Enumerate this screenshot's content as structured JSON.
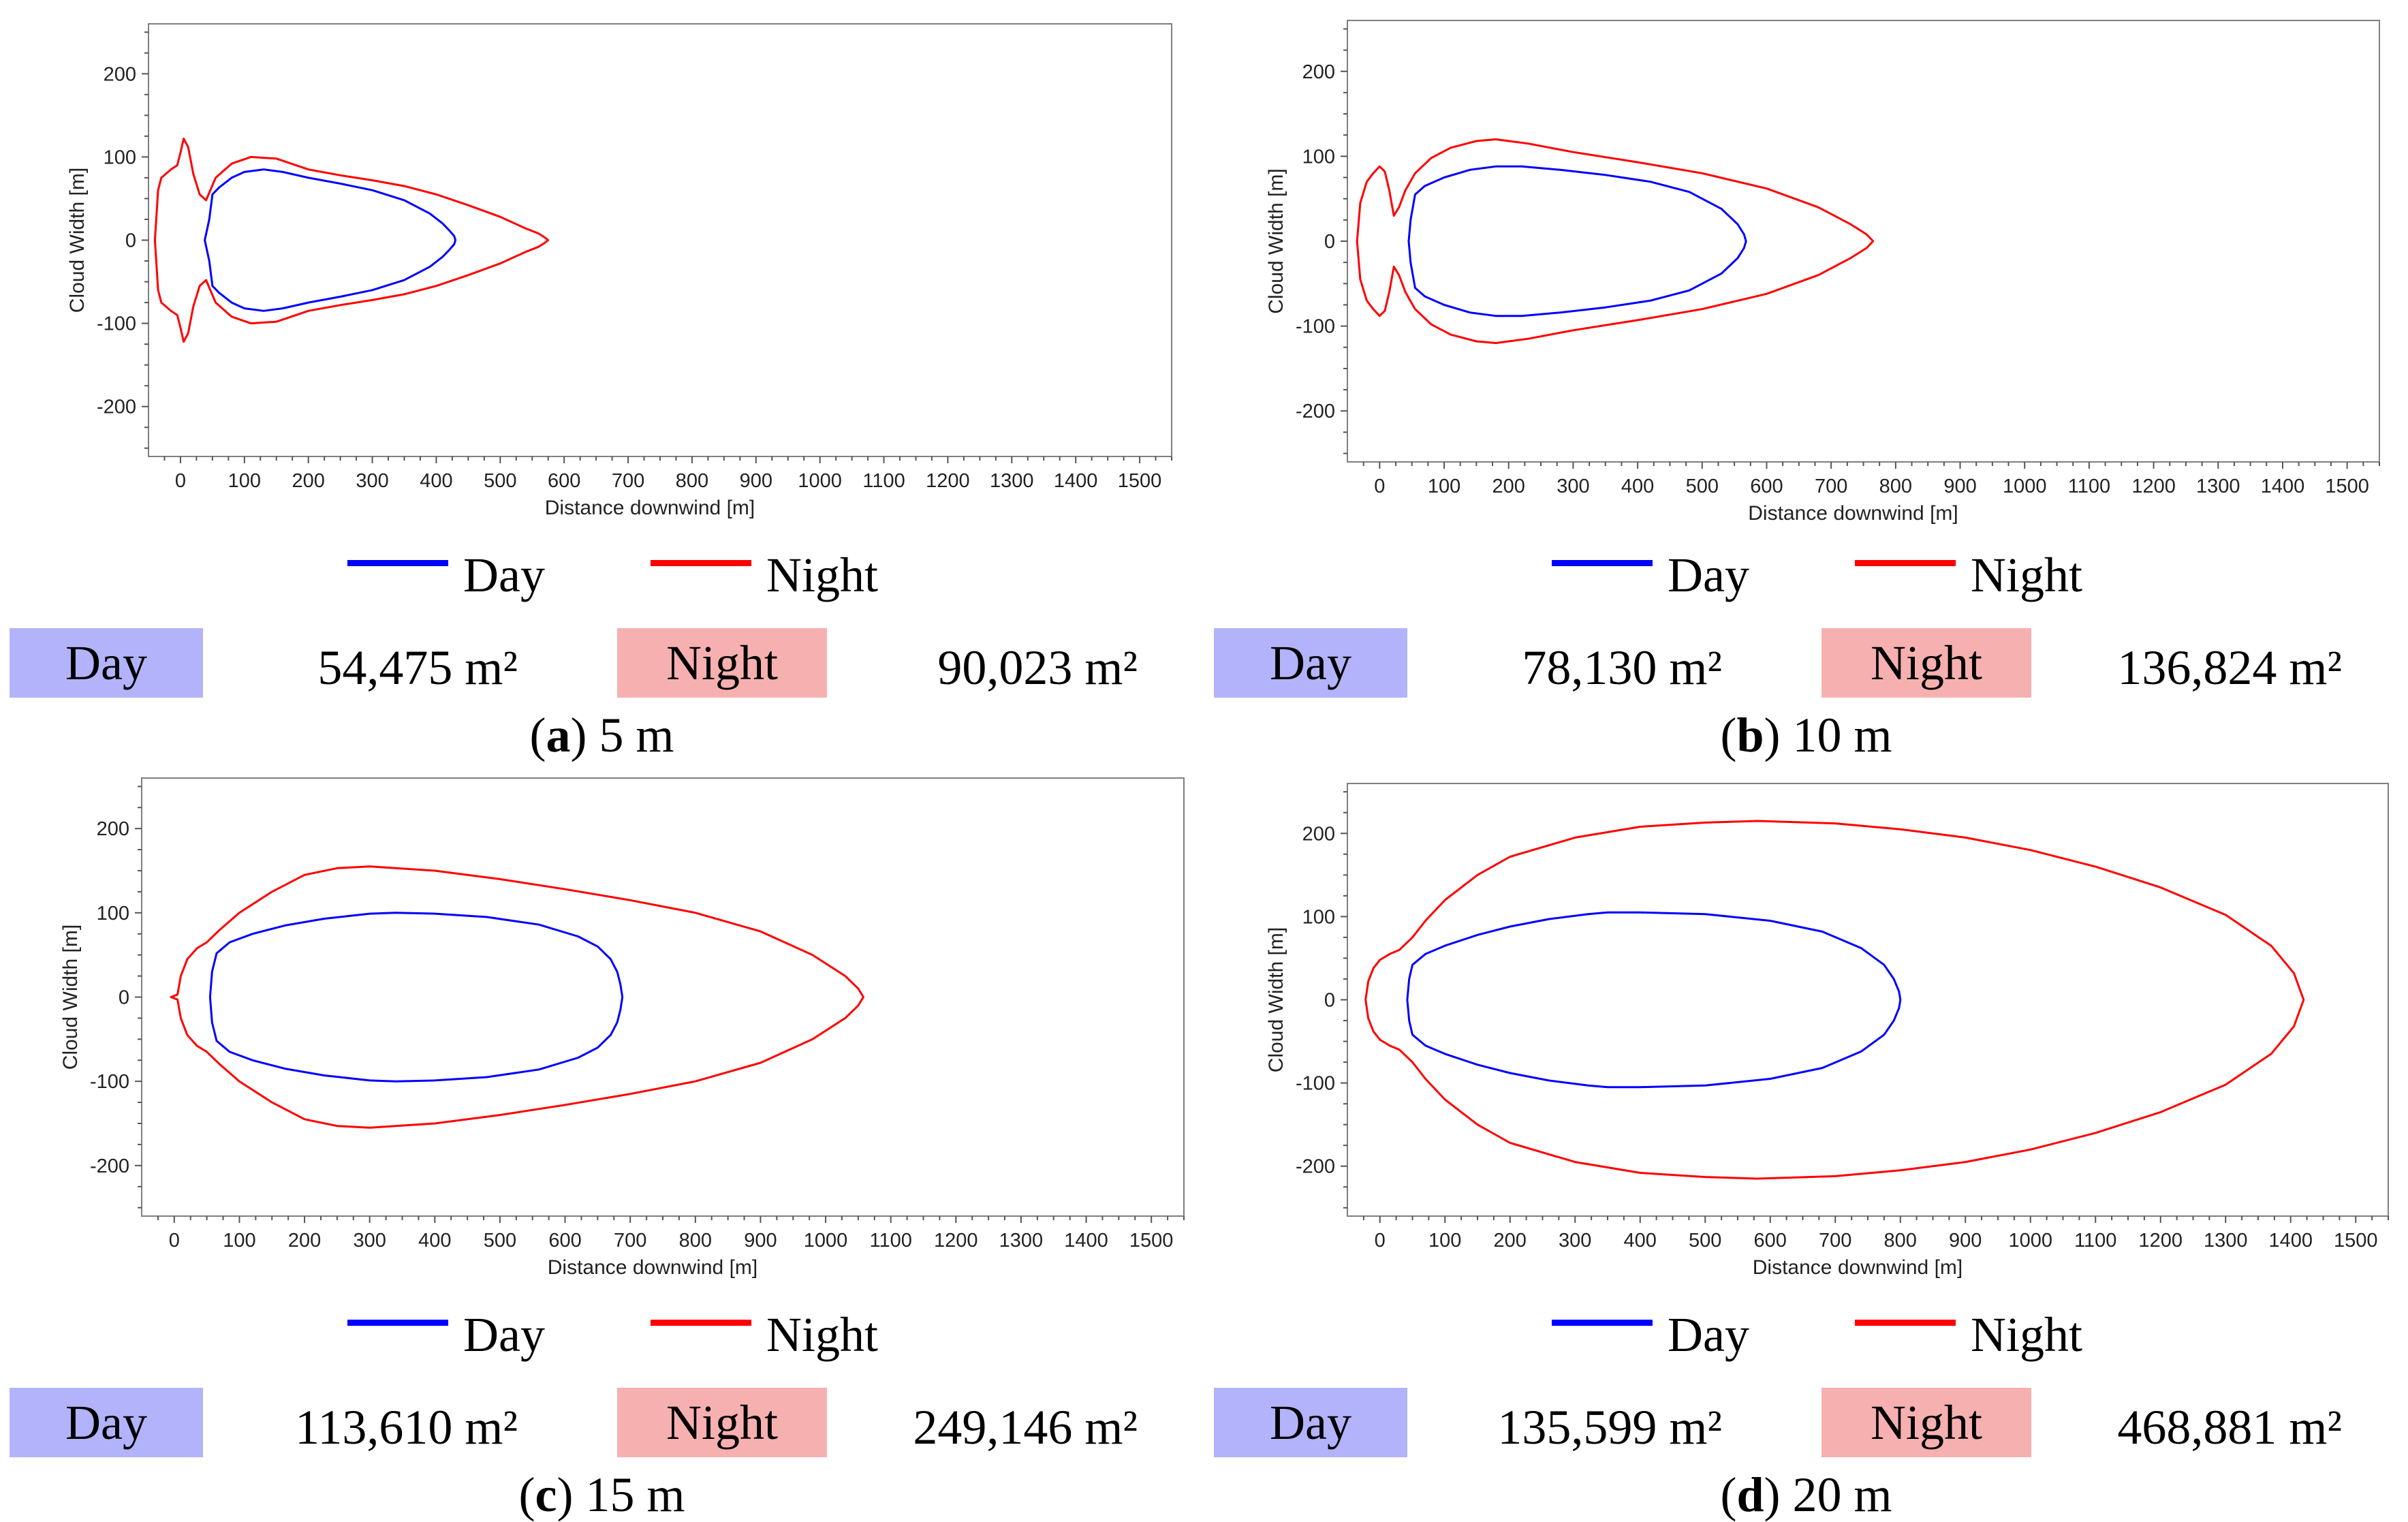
{
  "colors": {
    "day": "#0000ff",
    "night": "#ff0000",
    "day_box": "#b3b3fb",
    "night_box": "#f7b0b0",
    "frame": "#7f7f7f"
  },
  "labels": {
    "day": "Day",
    "night": "Night"
  },
  "chart_data": [
    {
      "type": "line",
      "caption": {
        "letter": "a",
        "text": "5 m"
      },
      "xlabel": "Distance downwind [m]",
      "ylabel": "Cloud Width [m]",
      "xlim": [
        -50,
        1550
      ],
      "ylim": [
        -260,
        260
      ],
      "xticks": [
        "0",
        "100",
        "200",
        "300",
        "400",
        "500",
        "600",
        "700",
        "800",
        "900",
        "1000",
        "1100",
        "1200",
        "1300",
        "1400",
        "1500"
      ],
      "yticks": [
        "200",
        "100",
        "0",
        "-100",
        "-200"
      ],
      "legend": [
        "Day",
        "Night"
      ],
      "areas": {
        "day": "54,475 m²",
        "night": "90,023 m²"
      },
      "series": [
        {
          "name": "Day",
          "x": [
            38,
            45,
            50,
            60,
            80,
            100,
            130,
            160,
            200,
            250,
            300,
            350,
            390,
            410,
            420,
            428,
            430
          ],
          "y": [
            0,
            25,
            55,
            63,
            75,
            82,
            85,
            82,
            75,
            68,
            60,
            48,
            32,
            20,
            12,
            5,
            0
          ]
        },
        {
          "name": "Night",
          "x": [
            -40,
            -35,
            -30,
            -15,
            -5,
            0,
            5,
            12,
            20,
            30,
            40,
            55,
            80,
            110,
            150,
            200,
            250,
            300,
            350,
            400,
            450,
            500,
            540,
            560,
            570,
            575
          ],
          "y": [
            0,
            60,
            75,
            85,
            90,
            105,
            122,
            112,
            80,
            55,
            48,
            75,
            92,
            100,
            98,
            85,
            78,
            72,
            65,
            55,
            42,
            28,
            14,
            8,
            3,
            0
          ]
        }
      ]
    },
    {
      "type": "line",
      "caption": {
        "letter": "b",
        "text": "10 m"
      },
      "xlabel": "Distance downwind [m]",
      "ylabel": "Cloud Width [m]",
      "xlim": [
        -50,
        1550
      ],
      "ylim": [
        -260,
        260
      ],
      "xticks": [
        "0",
        "100",
        "200",
        "300",
        "400",
        "500",
        "600",
        "700",
        "800",
        "900",
        "1000",
        "1100",
        "1200",
        "1300",
        "1400",
        "1500"
      ],
      "yticks": [
        "200",
        "100",
        "0",
        "-100",
        "-200"
      ],
      "legend": [
        "Day",
        "Night"
      ],
      "areas": {
        "day": "78,130 m²",
        "night": "136,824 m²"
      },
      "series": [
        {
          "name": "Day",
          "x": [
            45,
            48,
            55,
            70,
            100,
            140,
            180,
            220,
            280,
            350,
            420,
            480,
            530,
            555,
            565,
            568
          ],
          "y": [
            0,
            25,
            55,
            65,
            75,
            84,
            88,
            88,
            84,
            78,
            70,
            58,
            38,
            20,
            8,
            0
          ]
        },
        {
          "name": "Night",
          "x": [
            -35,
            -30,
            -20,
            -10,
            0,
            8,
            15,
            22,
            30,
            40,
            55,
            80,
            110,
            150,
            180,
            230,
            300,
            400,
            500,
            600,
            680,
            730,
            755,
            765
          ],
          "y": [
            0,
            45,
            70,
            80,
            88,
            82,
            60,
            30,
            40,
            60,
            80,
            98,
            110,
            118,
            120,
            115,
            105,
            93,
            80,
            62,
            40,
            20,
            8,
            0
          ]
        }
      ]
    },
    {
      "type": "line",
      "caption": {
        "letter": "c",
        "text": "15 m"
      },
      "xlabel": "Distance downwind [m]",
      "ylabel": "Cloud Width [m]",
      "xlim": [
        -50,
        1550
      ],
      "ylim": [
        -260,
        260
      ],
      "xticks": [
        "0",
        "100",
        "200",
        "300",
        "400",
        "500",
        "600",
        "700",
        "800",
        "900",
        "1000",
        "1100",
        "1200",
        "1300",
        "1400",
        "1500"
      ],
      "yticks": [
        "200",
        "100",
        "0",
        "-100",
        "-200"
      ],
      "legend": [
        "Day",
        "Night"
      ],
      "areas": {
        "day": "113,610 m²",
        "night": "249,146 m²"
      },
      "series": [
        {
          "name": "Day",
          "x": [
            55,
            58,
            65,
            85,
            120,
            170,
            230,
            300,
            340,
            400,
            480,
            560,
            620,
            650,
            670,
            680,
            685,
            688
          ],
          "y": [
            0,
            30,
            52,
            65,
            75,
            85,
            93,
            99,
            100,
            99,
            95,
            86,
            72,
            60,
            45,
            30,
            15,
            0
          ]
        },
        {
          "name": "Night",
          "x": [
            -5,
            5,
            10,
            20,
            35,
            50,
            70,
            100,
            150,
            200,
            250,
            300,
            400,
            500,
            600,
            700,
            800,
            900,
            980,
            1030,
            1050,
            1058
          ],
          "y": [
            0,
            3,
            25,
            45,
            58,
            65,
            80,
            100,
            125,
            145,
            153,
            155,
            150,
            140,
            128,
            115,
            100,
            78,
            50,
            25,
            10,
            0
          ]
        }
      ]
    },
    {
      "type": "line",
      "caption": {
        "letter": "d",
        "text": "20 m"
      },
      "xlabel": "Distance downwind [m]",
      "ylabel": "Cloud Width [m]",
      "xlim": [
        -50,
        1550
      ],
      "ylim": [
        -260,
        260
      ],
      "xticks": [
        "0",
        "100",
        "200",
        "300",
        "400",
        "500",
        "600",
        "700",
        "800",
        "900",
        "1000",
        "1100",
        "1200",
        "1300",
        "1400",
        "1500"
      ],
      "yticks": [
        "200",
        "100",
        "0",
        "-100",
        "-200"
      ],
      "legend": [
        "Day",
        "Night"
      ],
      "areas": {
        "day": "135,599 m²",
        "night": "468,881 m²"
      },
      "series": [
        {
          "name": "Day",
          "x": [
            42,
            45,
            50,
            70,
            100,
            150,
            200,
            260,
            320,
            350,
            400,
            500,
            600,
            680,
            740,
            775,
            790,
            798,
            800
          ],
          "y": [
            0,
            25,
            42,
            55,
            65,
            78,
            88,
            97,
            103,
            105,
            105,
            103,
            95,
            82,
            62,
            42,
            25,
            10,
            0
          ]
        },
        {
          "name": "Night",
          "x": [
            -22,
            -18,
            -10,
            0,
            15,
            30,
            50,
            70,
            100,
            150,
            200,
            300,
            400,
            500,
            580,
            700,
            800,
            900,
            1000,
            1100,
            1200,
            1300,
            1370,
            1405,
            1420
          ],
          "y": [
            0,
            22,
            38,
            48,
            55,
            60,
            75,
            95,
            120,
            150,
            172,
            195,
            208,
            213,
            215,
            212,
            205,
            195,
            180,
            160,
            135,
            102,
            65,
            32,
            0
          ]
        }
      ]
    }
  ]
}
